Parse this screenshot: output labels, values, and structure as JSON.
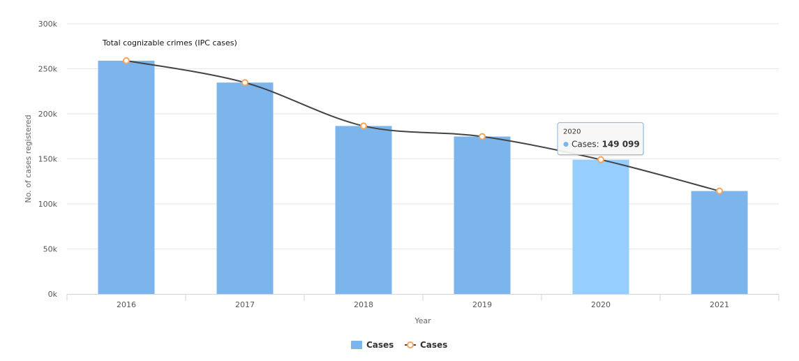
{
  "chart_data": {
    "type": "bar",
    "annotation": "Total cognizable crimes (IPC cases)",
    "xlabel": "Year",
    "ylabel": "No. of cases registered",
    "categories": [
      "2016",
      "2017",
      "2018",
      "2019",
      "2020",
      "2021"
    ],
    "ylim": [
      0,
      300000
    ],
    "yticks": [
      "0k",
      "50k",
      "100k",
      "150k",
      "200k",
      "250k",
      "300k"
    ],
    "grid": true,
    "legend_position": "bottom-center",
    "series": [
      {
        "name": "Cases",
        "kind": "bar",
        "color": "#7cb5ec",
        "values": [
          259000,
          234700,
          186500,
          174800,
          149099,
          114300
        ]
      },
      {
        "name": "Cases",
        "kind": "spline",
        "color": "#434348",
        "marker_color": "#f7a35c",
        "values": [
          259000,
          234700,
          186500,
          174800,
          149099,
          114300
        ]
      }
    ],
    "highlight_color": "#96ceff",
    "tooltip": {
      "category": "2020",
      "series_label": "Cases",
      "value_text": "149 099"
    }
  }
}
